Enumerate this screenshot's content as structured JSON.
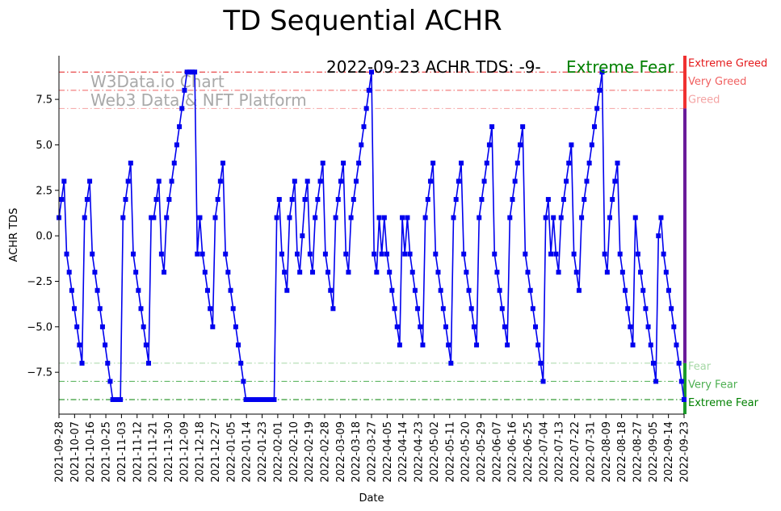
{
  "chart_data": {
    "type": "line",
    "title": "TD Sequential ACHR",
    "xlabel": "Date",
    "ylabel": "ACHR TDS",
    "ylim": [
      -9.8,
      9.9
    ],
    "yticks": [
      -7.5,
      -5.0,
      -2.5,
      0.0,
      2.5,
      5.0,
      7.5
    ],
    "ytick_labels": [
      "−7.5",
      "−5.0",
      "−2.5",
      "0.0",
      "2.5",
      "5.0",
      "7.5"
    ],
    "x_start": "2021-09-28",
    "x_end": "2022-09-23",
    "xtick_labels": [
      "2021-09-28",
      "2021-10-07",
      "2021-10-16",
      "2021-10-25",
      "2021-11-03",
      "2021-11-12",
      "2021-11-21",
      "2021-11-30",
      "2021-12-09",
      "2021-12-18",
      "2021-12-27",
      "2022-01-05",
      "2022-01-14",
      "2022-01-23",
      "2022-02-01",
      "2022-02-10",
      "2022-02-19",
      "2022-02-28",
      "2022-03-09",
      "2022-03-18",
      "2022-03-27",
      "2022-04-05",
      "2022-04-14",
      "2022-04-23",
      "2022-05-02",
      "2022-05-11",
      "2022-05-20",
      "2022-05-29",
      "2022-06-07",
      "2022-06-16",
      "2022-06-25",
      "2022-07-04",
      "2022-07-13",
      "2022-07-22",
      "2022-07-31",
      "2022-08-09",
      "2022-08-18",
      "2022-08-27",
      "2022-09-05",
      "2022-09-14",
      "2022-09-23"
    ],
    "series": [
      {
        "color": "#0000ee",
        "marker": "square",
        "values": [
          1,
          2,
          3,
          -1,
          -2,
          -3,
          -4,
          -5,
          -6,
          -7,
          1,
          2,
          3,
          -1,
          -2,
          -3,
          -4,
          -5,
          -6,
          -7,
          -8,
          -9,
          -9,
          -9,
          -9,
          1,
          2,
          3,
          4,
          -1,
          -2,
          -3,
          -4,
          -5,
          -6,
          -7,
          1,
          1,
          2,
          3,
          -1,
          -2,
          1,
          2,
          3,
          4,
          5,
          6,
          7,
          8,
          9,
          9,
          9,
          9,
          -1,
          1,
          -1,
          -2,
          -3,
          -4,
          -5,
          1,
          2,
          3,
          4,
          -1,
          -2,
          -3,
          -4,
          -5,
          -6,
          -7,
          -8,
          -9,
          -9,
          -9,
          -9,
          -9,
          -9,
          -9,
          -9,
          -9,
          -9,
          -9,
          -9,
          1,
          2,
          -1,
          -2,
          -3,
          1,
          2,
          3,
          -1,
          -2,
          0,
          2,
          3,
          -1,
          -2,
          1,
          2,
          3,
          4,
          -1,
          -2,
          -3,
          -4,
          1,
          2,
          3,
          4,
          -1,
          -2,
          1,
          2,
          3,
          4,
          5,
          6,
          7,
          8,
          9,
          -1,
          -2,
          1,
          -1,
          1,
          -1,
          -2,
          -3,
          -4,
          -5,
          -6,
          1,
          -1,
          1,
          -1,
          -2,
          -3,
          -4,
          -5,
          -6,
          1,
          2,
          3,
          4,
          -1,
          -2,
          -3,
          -4,
          -5,
          -6,
          -7,
          1,
          2,
          3,
          4,
          -1,
          -2,
          -3,
          -4,
          -5,
          -6,
          1,
          2,
          3,
          4,
          5,
          6,
          -1,
          -2,
          -3,
          -4,
          -5,
          -6,
          1,
          2,
          3,
          4,
          5,
          6,
          -1,
          -2,
          -3,
          -4,
          -5,
          -6,
          -7,
          -8,
          1,
          2,
          -1,
          1,
          -1,
          -2,
          1,
          2,
          3,
          4,
          5,
          -1,
          -2,
          -3,
          1,
          2,
          3,
          4,
          5,
          6,
          7,
          8,
          9,
          -1,
          -2,
          1,
          2,
          3,
          4,
          -1,
          -2,
          -3,
          -4,
          -5,
          -6,
          1,
          -1,
          -2,
          -3,
          -4,
          -5,
          -6,
          -7,
          -8,
          0,
          1,
          -1,
          -2,
          -3,
          -4,
          -5,
          -6,
          -7,
          -8,
          -9
        ]
      }
    ],
    "reference_lines": [
      {
        "label": "Extreme Greed",
        "y": 9,
        "color": "#e41a1c"
      },
      {
        "label": "Very Greed",
        "y": 8,
        "color": "#f06060"
      },
      {
        "label": "Greed",
        "y": 7,
        "color": "#f4a3a3"
      },
      {
        "label": "Fear",
        "y": -7,
        "color": "#a6d8a6"
      },
      {
        "label": "Very Fear",
        "y": -8,
        "color": "#4caf50"
      },
      {
        "label": "Extreme Fear",
        "y": -9,
        "color": "#008000"
      }
    ],
    "annotation": "2022-09-23 ACHR TDS: -9-",
    "sentiment_label": "Extreme Fear",
    "sentiment_color": "#008000",
    "watermark": [
      "W3Data.io Chart",
      "Web3 Data & NFT Platform"
    ],
    "grid": false
  }
}
